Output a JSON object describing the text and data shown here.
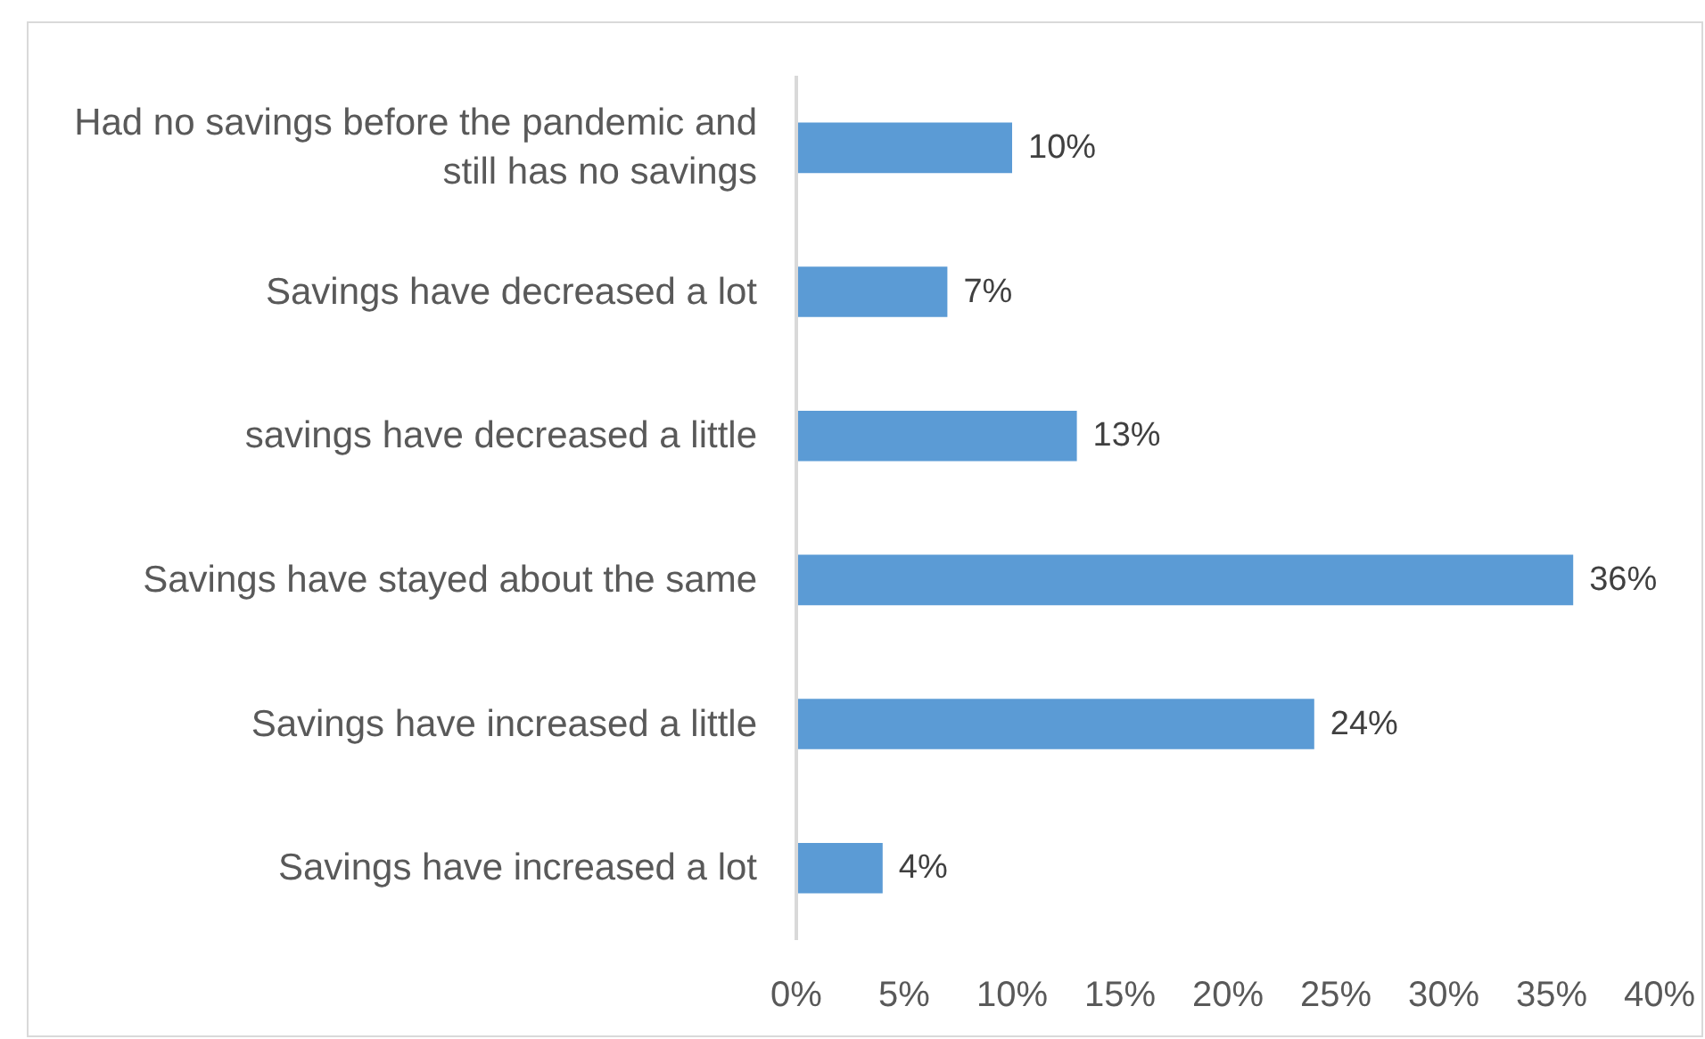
{
  "chart_data": {
    "type": "bar",
    "orientation": "horizontal",
    "categories": [
      "Had no savings before the pandemic and still has no savings",
      "Savings have decreased a lot",
      "savings have decreased a little",
      "Savings have stayed about the same",
      "Savings have increased a little",
      "Savings have increased a lot"
    ],
    "values": [
      10,
      7,
      13,
      36,
      24,
      4
    ],
    "color": "#5b9bd5",
    "value_labels": [
      "10%",
      "7%",
      "13%",
      "36%",
      "24%",
      "4%"
    ],
    "xlim": [
      0,
      40
    ],
    "xticks": [
      {
        "value": 0,
        "label": "0%"
      },
      {
        "value": 5,
        "label": "5%"
      },
      {
        "value": 10,
        "label": "10%"
      },
      {
        "value": 15,
        "label": "15%"
      },
      {
        "value": 20,
        "label": "20%"
      },
      {
        "value": 25,
        "label": "25%"
      },
      {
        "value": 30,
        "label": "30%"
      },
      {
        "value": 35,
        "label": "35%"
      },
      {
        "value": 40,
        "label": "40%"
      }
    ]
  }
}
